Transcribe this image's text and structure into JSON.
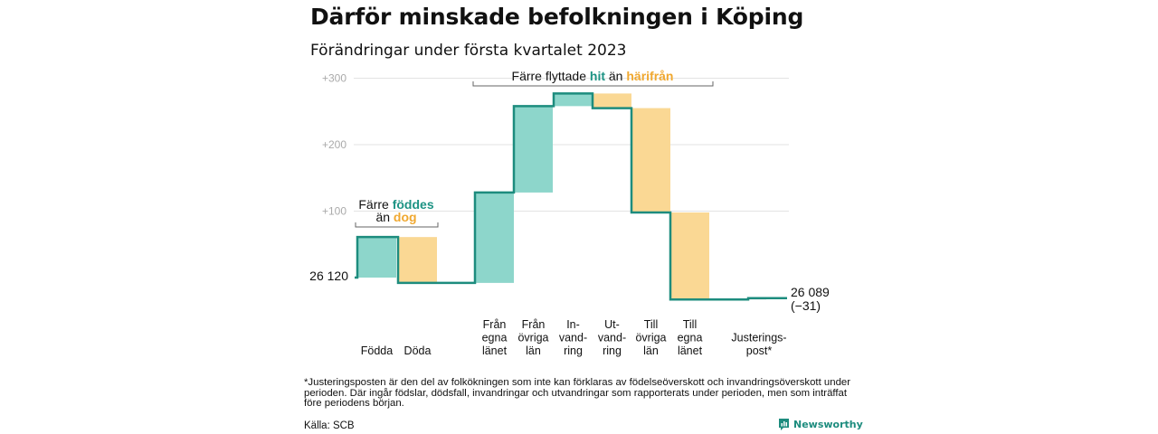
{
  "title": "Därför minskade befolkningen i Köping",
  "subtitle": "Förändringar under första kvartalet 2023",
  "footnote": "*Justeringsposten är den del av folkökningen som inte kan förklaras av födelseöverskott och invandringsöverskott under perioden. Där ingår födslar, dödsfall, invandringar och utvandringar som rapporterats under perioden, men som inträffat före periodens början.",
  "source": "Källa: SCB",
  "brand": "Newsworthy",
  "colors": {
    "teal_fill": "#8dd6cb",
    "orange_fill": "#fad894",
    "grey_fill": "#c9c9c9",
    "line": "#1d8c7e",
    "grid": "#e3e3e3"
  },
  "annotations": {
    "births": {
      "line1": "Färre",
      "line1b": "föddes",
      "line2": "än",
      "line2b": "dog"
    },
    "migration": {
      "a": "Färre flyttade",
      "b": "hit",
      "c": "än",
      "d": "härifrån"
    }
  },
  "chart_data": {
    "type": "waterfall",
    "y_ticks": [
      "+100",
      "+200",
      "+300"
    ],
    "y_tick_values": [
      100,
      200,
      300
    ],
    "ylim": [
      -40,
      305
    ],
    "start_label": "26 120",
    "start_value": 26120,
    "end_label": "26 089",
    "end_change_label": "(−31)",
    "end_value": 26089,
    "steps": [
      {
        "label": [
          "Födda"
        ],
        "value": 61,
        "kind": "in"
      },
      {
        "label": [
          "Döda"
        ],
        "value": -69,
        "kind": "out"
      },
      {
        "label": [
          "Från",
          "egna",
          "länet"
        ],
        "value": 136,
        "kind": "in"
      },
      {
        "label": [
          "Från",
          "övriga",
          "län"
        ],
        "value": 130,
        "kind": "in"
      },
      {
        "label": [
          "In-",
          "vand-",
          "ring"
        ],
        "value": 19,
        "kind": "in"
      },
      {
        "label": [
          "Ut-",
          "vand-",
          "ring"
        ],
        "value": -22,
        "kind": "out"
      },
      {
        "label": [
          "Till",
          "övriga",
          "län"
        ],
        "value": -157,
        "kind": "out"
      },
      {
        "label": [
          "Till",
          "egna",
          "länet"
        ],
        "value": -131,
        "kind": "out"
      },
      {
        "label": [
          "Justerings-",
          "post*"
        ],
        "value": 2,
        "kind": "adj"
      }
    ]
  }
}
